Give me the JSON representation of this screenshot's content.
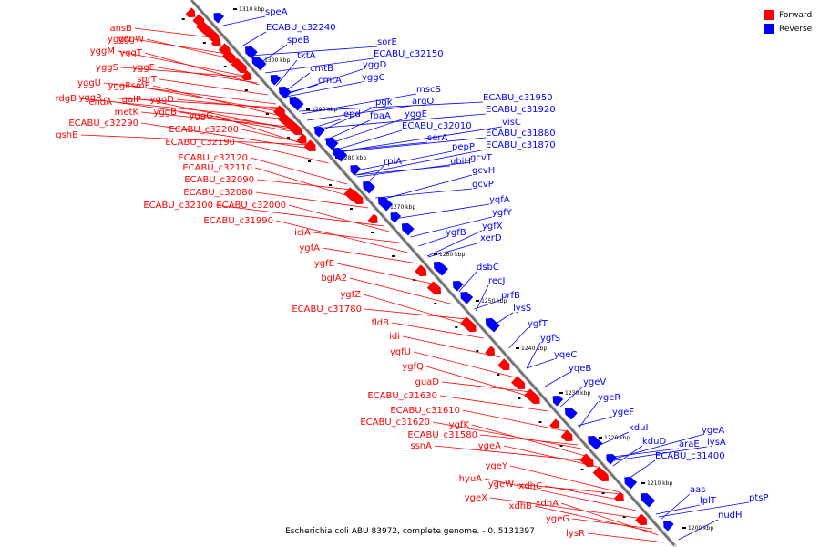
{
  "caption": "Escherichia coli ABU 83972, complete genome. - 0..5131397",
  "legend": {
    "forward": {
      "label": "Forward",
      "color": "#ff0000"
    },
    "reverse": {
      "label": "Reverse",
      "color": "#0000ff"
    }
  },
  "ticks": [
    "1310 kbp",
    "1300 kbp",
    "1290 kbp",
    "1280 kbp",
    "1270 kbp",
    "1260 kbp",
    "1250 kbp",
    "1240 kbp",
    "1230 kbp",
    "1220 kbp",
    "1210 kbp",
    "1200 kbp"
  ],
  "forward_labels": [
    "ansB",
    "yggN",
    "yggW",
    "yggM",
    "yggT",
    "yggS",
    "yggE",
    "yggU",
    "yggF",
    "rsmE",
    "yggR",
    "sprT",
    "rdgB",
    "endA",
    "galP",
    "yggD",
    "metK",
    "yggB",
    "ECABU_c32290",
    "yggG",
    "gshB",
    "ECABU_c32200",
    "ECABU_c32190",
    "ECABU_c32120",
    "ECABU_c32110",
    "ECABU_c32090",
    "ECABU_c32080",
    "ECABU_c32100",
    "ECABU_c32000",
    "ECABU_c31990",
    "iciA",
    "ygfA",
    "ygfE",
    "bglA2",
    "ygfZ",
    "ECABU_c31780",
    "fldB",
    "idi",
    "ygfU",
    "ygfQ",
    "guaD",
    "ECABU_c31630",
    "ECABU_c31610",
    "ECABU_c31620",
    "ygfK",
    "ECABU_c31580",
    "ssnA",
    "ygeA",
    "ygeY",
    "hyuA",
    "ygeW",
    "xdhC",
    "ygeX",
    "xdhB",
    "xdhA",
    "ygeG",
    "lysR"
  ],
  "reverse_labels": [
    "speA",
    "ECABU_c32240",
    "speB",
    "tktA",
    "sorE",
    "ECABU_c32150",
    "cmtB",
    "yggD",
    "cmtA",
    "yggC",
    "mscS",
    "pgk",
    "epd",
    "argO",
    "fbaA",
    "yggE",
    "ECABU_c31950",
    "ECABU_c31920",
    "ECABU_c32010",
    "visC",
    "serA",
    "ECABU_c31880",
    "pepP",
    "ECABU_c31870",
    "ubiH",
    "gcvT",
    "rpiA",
    "gcvH",
    "gcvP",
    "yqfA",
    "ygfY",
    "ygfX",
    "ygfB",
    "xerD",
    "dsbC",
    "recJ",
    "prfB",
    "lysS",
    "ygfT",
    "ygfS",
    "yqeC",
    "yqeB",
    "ygeV",
    "ygeR",
    "ygeF",
    "kduI",
    "kduD",
    "ygeA",
    "araE",
    "lysA",
    "ECABU_c31400",
    "aas",
    "lplT",
    "ptsP",
    "nudH"
  ]
}
